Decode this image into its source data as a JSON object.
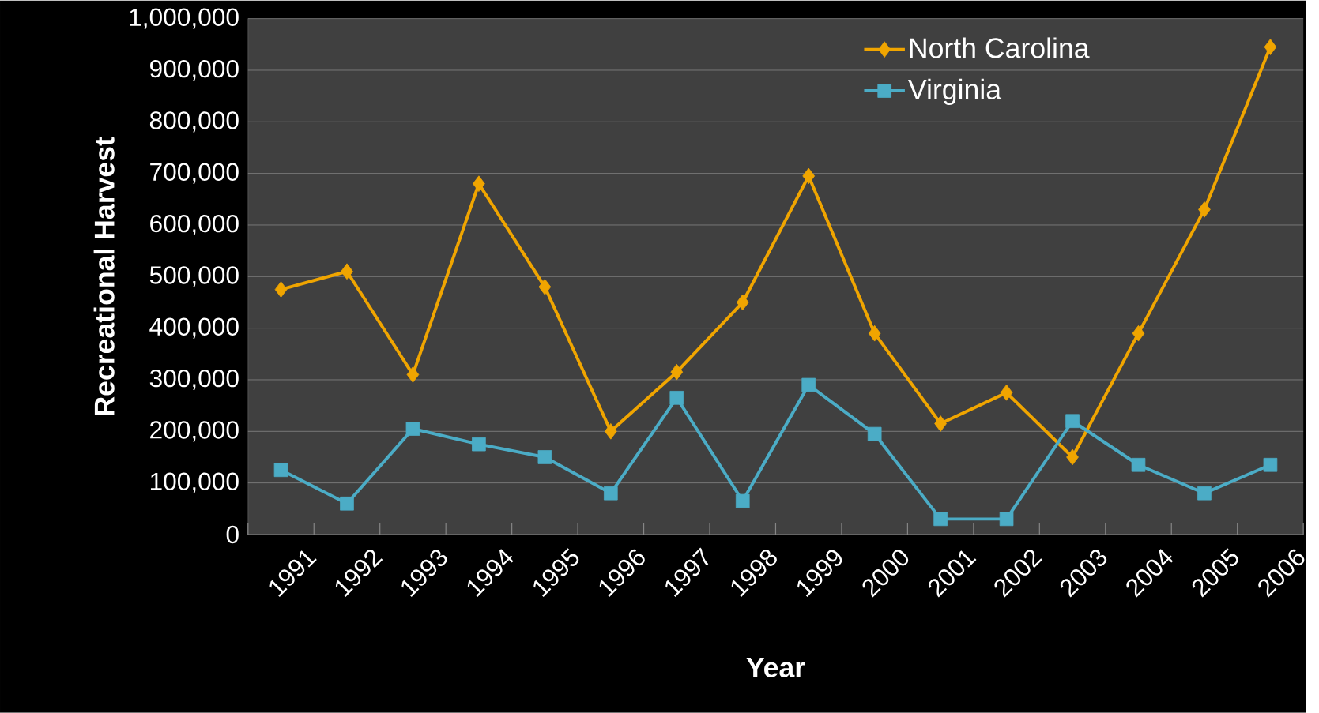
{
  "chart_data": {
    "type": "line",
    "xlabel": "Year",
    "ylabel": "Recreational Harvest",
    "categories": [
      "1991",
      "1992",
      "1993",
      "1994",
      "1995",
      "1996",
      "1997",
      "1998",
      "1999",
      "2000",
      "2001",
      "2002",
      "2003",
      "2004",
      "2005",
      "2006"
    ],
    "series": [
      {
        "name": "North Carolina",
        "color": "#f0a500",
        "marker": "diamond",
        "values": [
          475000,
          510000,
          310000,
          680000,
          480000,
          200000,
          315000,
          450000,
          695000,
          390000,
          215000,
          275000,
          150000,
          390000,
          630000,
          945000
        ]
      },
      {
        "name": "Virginia",
        "color": "#4bacc6",
        "marker": "square",
        "values": [
          125000,
          60000,
          205000,
          175000,
          150000,
          80000,
          265000,
          65000,
          290000,
          195000,
          30000,
          30000,
          220000,
          135000,
          80000,
          135000
        ]
      }
    ],
    "ylim": [
      0,
      1000000
    ],
    "yticks": [
      {
        "value": 0,
        "label": "0"
      },
      {
        "value": 100000,
        "label": "100,000"
      },
      {
        "value": 200000,
        "label": "200,000"
      },
      {
        "value": 300000,
        "label": "300,000"
      },
      {
        "value": 400000,
        "label": "400,000"
      },
      {
        "value": 500000,
        "label": "500,000"
      },
      {
        "value": 600000,
        "label": "600,000"
      },
      {
        "value": 700000,
        "label": "700,000"
      },
      {
        "value": 800000,
        "label": "800,000"
      },
      {
        "value": 900000,
        "label": "900,000"
      },
      {
        "value": 1000000,
        "label": "1,000,000"
      }
    ],
    "grid": "y",
    "legend": "top right",
    "line_style": "solid"
  }
}
